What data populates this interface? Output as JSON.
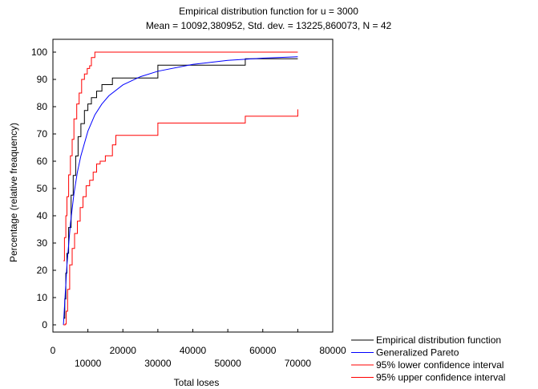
{
  "chart_data": {
    "type": "line",
    "title": "Empirical distribution function for u = 3000",
    "subtitle": "Mean = 10092,380952, Std. dev. = 13225,860073, N = 42",
    "xlabel": "Total loses",
    "ylabel": "Percentage (relative freaquency)",
    "xlim": [
      0,
      80000
    ],
    "ylim": [
      0,
      100
    ],
    "x_ticks_upper": [
      0,
      20000,
      40000,
      60000,
      80000
    ],
    "x_ticks_lower": [
      10000,
      30000,
      50000,
      70000
    ],
    "y_ticks": [
      0,
      10,
      20,
      30,
      40,
      50,
      60,
      70,
      80,
      90,
      100
    ],
    "grid": false,
    "legend_position": "bottom-right",
    "series": [
      {
        "name": "Empirical distribution function",
        "color": "#000000",
        "step": true,
        "points": [
          [
            3000,
            2.4
          ],
          [
            3400,
            9.5
          ],
          [
            3700,
            19
          ],
          [
            4000,
            26.2
          ],
          [
            4500,
            35.7
          ],
          [
            5200,
            47.6
          ],
          [
            5800,
            54.8
          ],
          [
            6500,
            61.9
          ],
          [
            7200,
            69
          ],
          [
            8000,
            73.8
          ],
          [
            9000,
            78.6
          ],
          [
            10000,
            81
          ],
          [
            11000,
            83.3
          ],
          [
            12500,
            85.7
          ],
          [
            14000,
            88.1
          ],
          [
            17000,
            90.5
          ],
          [
            30000,
            95.2
          ],
          [
            55000,
            97.6
          ],
          [
            70000,
            97.6
          ]
        ]
      },
      {
        "name": "Generalized Pareto",
        "color": "#0000ff",
        "step": false,
        "points": [
          [
            3000,
            0
          ],
          [
            4000,
            22
          ],
          [
            5000,
            37
          ],
          [
            6000,
            48
          ],
          [
            7000,
            56
          ],
          [
            8000,
            62
          ],
          [
            10000,
            71
          ],
          [
            12000,
            77
          ],
          [
            14000,
            81
          ],
          [
            16000,
            84
          ],
          [
            20000,
            88
          ],
          [
            25000,
            91
          ],
          [
            30000,
            93
          ],
          [
            40000,
            95.5
          ],
          [
            50000,
            97
          ],
          [
            60000,
            97.8
          ],
          [
            70000,
            98.3
          ]
        ]
      },
      {
        "name": "95% lower confidence interval",
        "color": "#ff0000",
        "step": true,
        "points": [
          [
            3000,
            0
          ],
          [
            3500,
            0.3
          ],
          [
            3800,
            5
          ],
          [
            4200,
            13
          ],
          [
            4800,
            22
          ],
          [
            5500,
            28
          ],
          [
            6200,
            33.5
          ],
          [
            7000,
            38
          ],
          [
            7800,
            43
          ],
          [
            8600,
            47
          ],
          [
            9500,
            51
          ],
          [
            10500,
            53
          ],
          [
            11500,
            56
          ],
          [
            12500,
            59
          ],
          [
            13500,
            60
          ],
          [
            15000,
            62
          ],
          [
            17000,
            66
          ],
          [
            18000,
            69.5
          ],
          [
            30000,
            74
          ],
          [
            55000,
            76.5
          ],
          [
            70000,
            79
          ]
        ]
      },
      {
        "name": "95% upper confidence interval",
        "color": "#ff0000",
        "step": true,
        "points": [
          [
            3000,
            23.5
          ],
          [
            3300,
            32
          ],
          [
            3700,
            40
          ],
          [
            4000,
            47
          ],
          [
            4500,
            55
          ],
          [
            5000,
            62
          ],
          [
            5500,
            68
          ],
          [
            6000,
            75.5
          ],
          [
            6800,
            81
          ],
          [
            7500,
            85
          ],
          [
            8200,
            90
          ],
          [
            9000,
            92
          ],
          [
            9800,
            94
          ],
          [
            10500,
            95
          ],
          [
            11000,
            98
          ],
          [
            12000,
            100
          ],
          [
            70000,
            100
          ]
        ]
      }
    ]
  }
}
